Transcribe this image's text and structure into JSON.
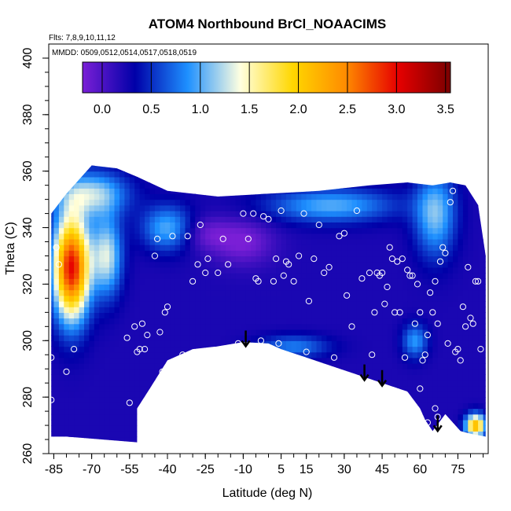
{
  "chart_data": {
    "type": "heatmap",
    "title": "ATOM4 Northbound BrCl_NOAACIMS",
    "notes": [
      "Flts: 7,8,9,10,11,12",
      "MMDD: 0509,0512,0514,0517,0518,0519"
    ],
    "xlabel": "Latitude (deg N)",
    "ylabel": "Theta (C)",
    "xlim": [
      -87,
      87
    ],
    "ylim": [
      260,
      405
    ],
    "xticks": [
      -85,
      -70,
      -55,
      -40,
      -25,
      -10,
      5,
      15,
      30,
      45,
      60,
      75
    ],
    "yticks": [
      260,
      280,
      300,
      320,
      340,
      360,
      380,
      400
    ],
    "grid": false,
    "colorbar": {
      "placement": "top-inside",
      "range": [
        -0.2,
        3.55
      ],
      "ticks": [
        0.0,
        0.5,
        1.0,
        1.5,
        2.0,
        2.5,
        3.0,
        3.5
      ],
      "tick_labels": [
        "0.0",
        "0.5",
        "1.0",
        "1.5",
        "2.0",
        "2.5",
        "3.0",
        "3.5"
      ],
      "colors": [
        "#7a1fd6",
        "#0000a8",
        "#1e90ff",
        "#ffffe0",
        "#ffd700",
        "#ff8c00",
        "#e60000",
        "#7a0000"
      ]
    },
    "colors": {
      "points": "#ffffff",
      "arrows": "#000000"
    },
    "field": {
      "background_value": 0.22,
      "features": [
        {
          "lat": -78,
          "theta": 326,
          "value": 3.0,
          "spread_lat": 7,
          "spread_theta": 18
        },
        {
          "lat": -64,
          "theta": 330,
          "value": 1.3,
          "spread_lat": 6,
          "spread_theta": 14
        },
        {
          "lat": -70,
          "theta": 352,
          "value": 1.2,
          "spread_lat": 14,
          "spread_theta": 8
        },
        {
          "lat": -40,
          "theta": 340,
          "value": 1.0,
          "spread_lat": 10,
          "spread_theta": 8
        },
        {
          "lat": 25,
          "theta": 348,
          "value": 1.0,
          "spread_lat": 25,
          "spread_theta": 6
        },
        {
          "lat": 66,
          "theta": 345,
          "value": 1.1,
          "spread_lat": 8,
          "spread_theta": 15
        },
        {
          "lat": 58,
          "theta": 300,
          "value": 0.9,
          "spread_lat": 5,
          "spread_theta": 6
        },
        {
          "lat": 10,
          "theta": 298,
          "value": 0.8,
          "spread_lat": 14,
          "spread_theta": 4
        },
        {
          "lat": 82,
          "theta": 270,
          "value": 2.2,
          "spread_lat": 4,
          "spread_theta": 4
        },
        {
          "lat": -10,
          "theta": 335,
          "value": -0.2,
          "spread_lat": 12,
          "spread_theta": 8
        },
        {
          "lat": -25,
          "theta": 338,
          "value": -0.1,
          "spread_lat": 10,
          "spread_theta": 6
        }
      ]
    },
    "boundary": {
      "upper": [
        [
          -86,
          345
        ],
        [
          -80,
          352
        ],
        [
          -70,
          362
        ],
        [
          -60,
          361
        ],
        [
          -52,
          358
        ],
        [
          -40,
          353
        ],
        [
          -20,
          351
        ],
        [
          0,
          352
        ],
        [
          20,
          353
        ],
        [
          40,
          355
        ],
        [
          55,
          356
        ],
        [
          65,
          355
        ],
        [
          72,
          356
        ],
        [
          78,
          355
        ],
        [
          83,
          348
        ],
        [
          86,
          330
        ]
      ],
      "lower": [
        [
          -86,
          266
        ],
        [
          -80,
          266
        ],
        [
          -66,
          265
        ],
        [
          -52,
          264
        ],
        [
          -52,
          276
        ],
        [
          -47,
          283
        ],
        [
          -40,
          293
        ],
        [
          -30,
          297
        ],
        [
          -20,
          298
        ],
        [
          -10,
          299.5
        ],
        [
          0,
          299
        ],
        [
          5,
          297
        ],
        [
          15,
          294
        ],
        [
          25,
          291
        ],
        [
          35,
          288
        ],
        [
          45,
          285
        ],
        [
          55,
          282
        ],
        [
          60,
          276
        ],
        [
          62,
          272
        ],
        [
          65,
          268
        ],
        [
          70,
          274
        ],
        [
          76,
          268
        ],
        [
          80,
          267
        ],
        [
          86,
          266
        ]
      ]
    },
    "points": [
      [
        -86,
        294
      ],
      [
        -86,
        279
      ],
      [
        -84,
        333
      ],
      [
        -83,
        327
      ],
      [
        -80,
        289
      ],
      [
        -77,
        297
      ],
      [
        -56,
        301
      ],
      [
        -55,
        278
      ],
      [
        -53,
        305
      ],
      [
        -52,
        296
      ],
      [
        -51,
        297
      ],
      [
        -50,
        306
      ],
      [
        -49,
        297
      ],
      [
        -48,
        302
      ],
      [
        -47,
        280
      ],
      [
        -45,
        330
      ],
      [
        -44,
        336
      ],
      [
        -43,
        303
      ],
      [
        -42,
        289
      ],
      [
        -41,
        310
      ],
      [
        -40,
        312
      ],
      [
        -38,
        337
      ],
      [
        -36,
        292
      ],
      [
        -34,
        295
      ],
      [
        -32,
        337
      ],
      [
        -30,
        321
      ],
      [
        -28,
        327
      ],
      [
        -27,
        341
      ],
      [
        -25,
        324
      ],
      [
        -24,
        329
      ],
      [
        -22,
        296
      ],
      [
        -20,
        324
      ],
      [
        -18,
        336
      ],
      [
        -16,
        327
      ],
      [
        -15,
        296
      ],
      [
        -12,
        299
      ],
      [
        -10,
        345
      ],
      [
        -8,
        336
      ],
      [
        -6,
        345
      ],
      [
        -5,
        322
      ],
      [
        -4,
        321
      ],
      [
        -3,
        300
      ],
      [
        -2,
        344
      ],
      [
        0,
        343
      ],
      [
        2,
        321
      ],
      [
        3,
        329
      ],
      [
        4,
        299
      ],
      [
        5,
        346
      ],
      [
        6,
        323
      ],
      [
        7,
        328
      ],
      [
        8,
        327
      ],
      [
        10,
        321
      ],
      [
        12,
        330
      ],
      [
        14,
        345
      ],
      [
        15,
        296
      ],
      [
        16,
        314
      ],
      [
        18,
        329
      ],
      [
        20,
        341
      ],
      [
        22,
        324
      ],
      [
        24,
        326
      ],
      [
        26,
        294
      ],
      [
        28,
        337
      ],
      [
        30,
        338
      ],
      [
        31,
        316
      ],
      [
        33,
        305
      ],
      [
        35,
        346
      ],
      [
        37,
        322
      ],
      [
        40,
        324
      ],
      [
        41,
        295
      ],
      [
        42,
        310
      ],
      [
        43,
        324
      ],
      [
        44,
        323
      ],
      [
        45,
        324
      ],
      [
        46,
        313
      ],
      [
        47,
        319
      ],
      [
        48,
        333
      ],
      [
        49,
        329
      ],
      [
        50,
        310
      ],
      [
        51,
        328
      ],
      [
        52,
        310
      ],
      [
        53,
        329
      ],
      [
        54,
        294
      ],
      [
        55,
        325
      ],
      [
        56,
        323
      ],
      [
        57,
        323
      ],
      [
        58,
        306
      ],
      [
        59,
        320
      ],
      [
        60,
        310
      ],
      [
        61,
        293
      ],
      [
        62,
        295
      ],
      [
        63,
        302
      ],
      [
        64,
        317
      ],
      [
        65,
        310
      ],
      [
        66,
        321
      ],
      [
        67,
        306
      ],
      [
        68,
        328
      ],
      [
        69,
        333
      ],
      [
        70,
        331
      ],
      [
        71,
        299
      ],
      [
        72,
        349
      ],
      [
        73,
        353
      ],
      [
        74,
        296
      ],
      [
        75,
        297
      ],
      [
        76,
        293
      ],
      [
        77,
        312
      ],
      [
        78,
        305
      ],
      [
        79,
        326
      ],
      [
        80,
        308
      ],
      [
        81,
        306
      ],
      [
        82,
        321
      ],
      [
        83,
        321
      ],
      [
        84,
        297
      ],
      [
        60,
        283
      ],
      [
        63,
        271
      ],
      [
        66,
        276
      ],
      [
        67,
        273
      ]
    ],
    "arrows": [
      {
        "lat": -9,
        "theta": 298
      },
      {
        "lat": 38,
        "theta": 286
      },
      {
        "lat": 45,
        "theta": 284
      },
      {
        "lat": 67,
        "theta": 268
      }
    ]
  }
}
